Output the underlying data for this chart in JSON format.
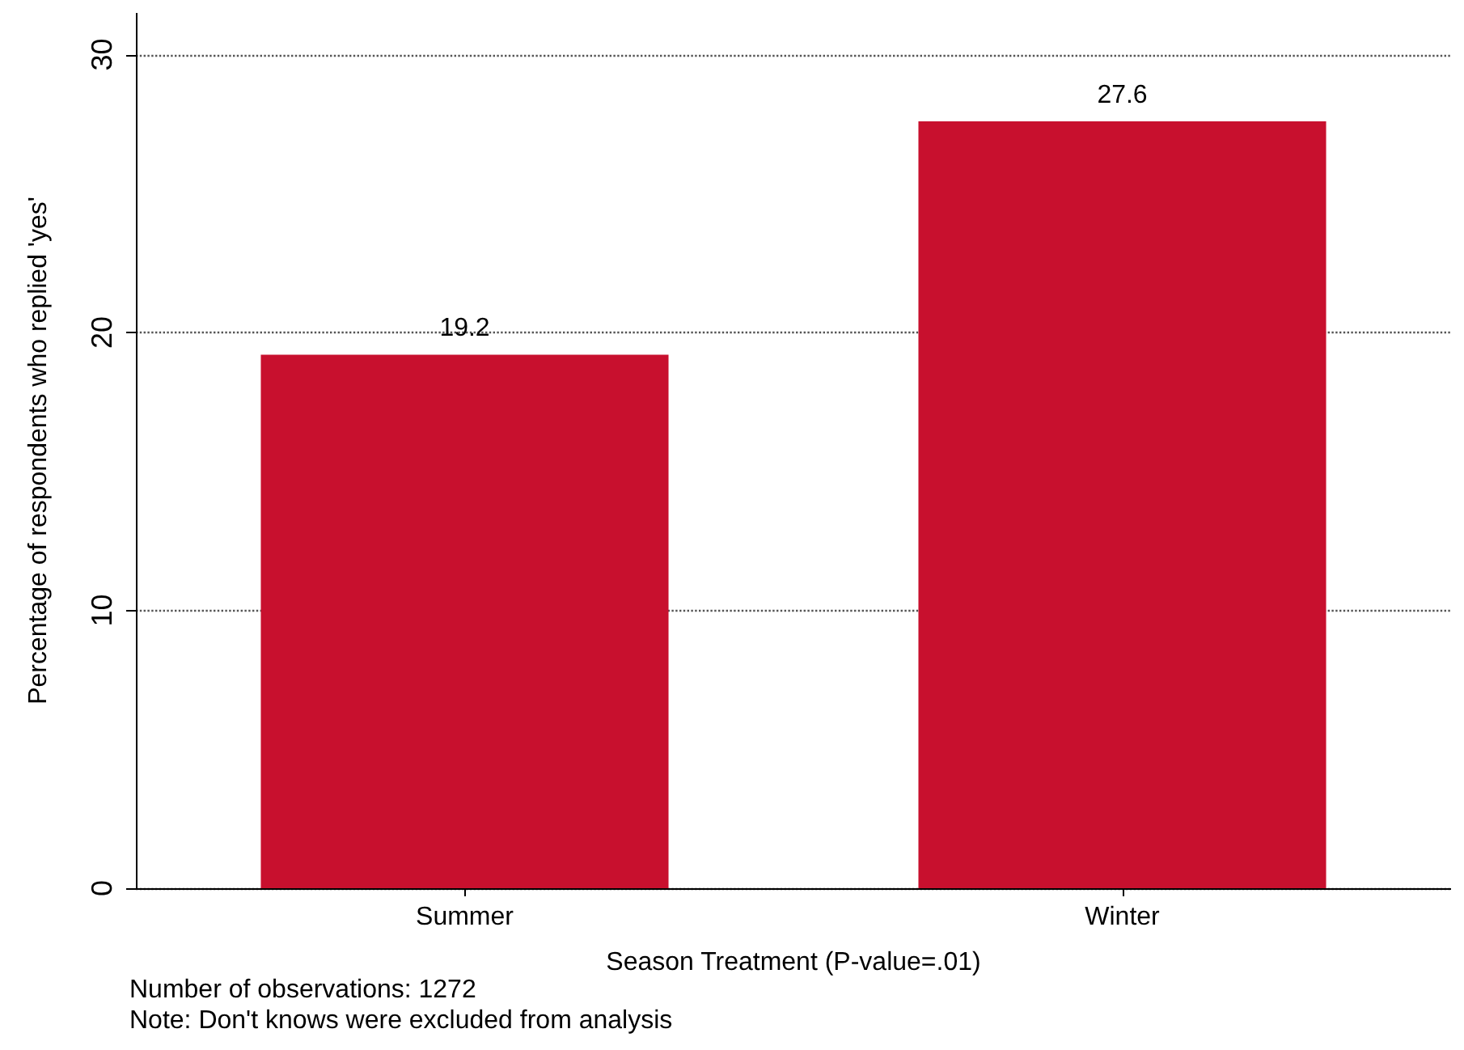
{
  "chart_data": {
    "type": "bar",
    "xlabel": "Season Treatment (P-value=.01)",
    "ylabel": "Percentage of respondents who replied 'yes'",
    "categories": [
      "Summer",
      "Winter"
    ],
    "values": [
      19.2,
      27.6
    ],
    "color": "#c8102e",
    "data_labels": true,
    "ylim": [
      0,
      31.5
    ],
    "yticks": [
      0,
      10,
      20,
      30
    ],
    "grid": "y",
    "annotations": [
      "Number of observations: 1272",
      "Note: Don't knows were excluded from analysis"
    ]
  }
}
